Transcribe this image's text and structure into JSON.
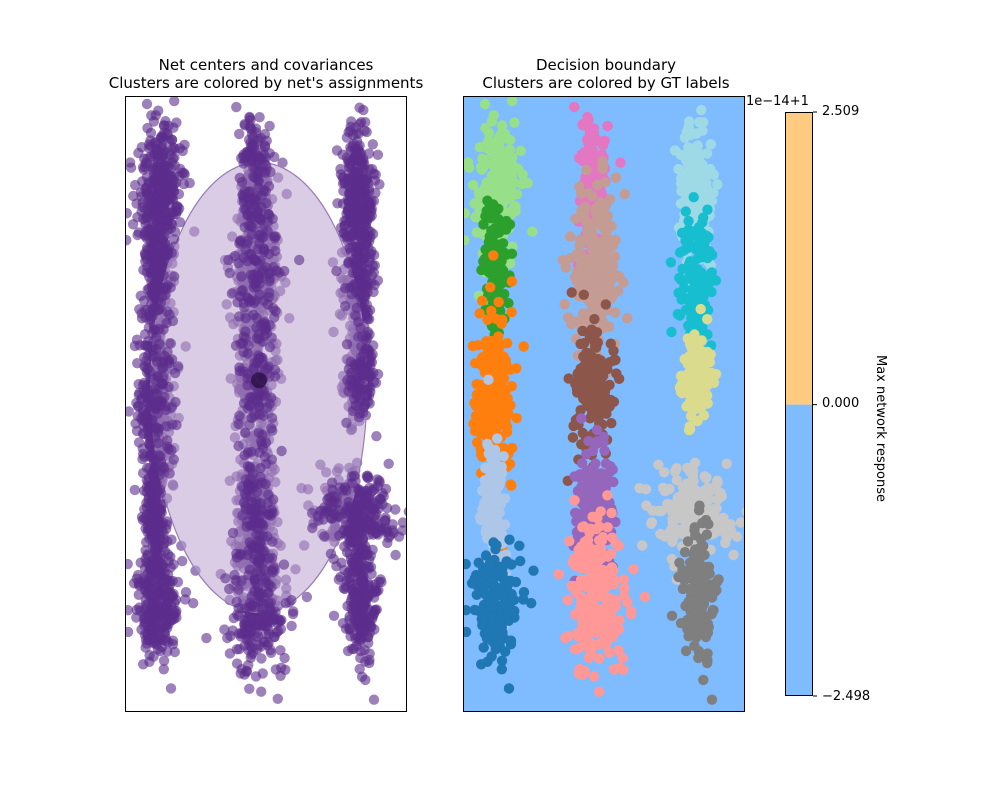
{
  "colors": {
    "assign_purple": "#5c2d8c",
    "ellipse_fill": "#b9a3cd",
    "ellipse_edge": "#9a7bb8",
    "center_dot": "#2b1247",
    "region_blue": "#7fbbff",
    "region_orange": "#ffcb80"
  },
  "chart_data": [
    {
      "type": "scatter",
      "title": "Net centers and covariances\nClusters are colored by net's assignments",
      "title_lines": [
        "Net centers and covariances",
        "Clusters are colored by net's assignments"
      ],
      "xlim": [
        -6,
        6
      ],
      "ylim": [
        -14,
        12
      ],
      "axes_ticks": "none",
      "series": [
        {
          "points_color": "#5c2d8c",
          "alpha": 0.6,
          "clusters": [
            {
              "cx": -4.5,
              "cy": 7.9,
              "sx": 0.45,
              "sy": 1.6,
              "n": 220
            },
            {
              "cx": -4.6,
              "cy": 4.7,
              "sx": 0.25,
              "sy": 1.3,
              "n": 130
            },
            {
              "cx": -4.7,
              "cy": -0.7,
              "sx": 0.4,
              "sy": 2.0,
              "n": 230
            },
            {
              "cx": -4.7,
              "cy": -5.7,
              "sx": 0.25,
              "sy": 1.6,
              "n": 140
            },
            {
              "cx": -4.6,
              "cy": -9.4,
              "sx": 0.45,
              "sy": 1.2,
              "n": 170
            },
            {
              "cx": -0.5,
              "cy": 8.4,
              "sx": 0.3,
              "sy": 1.4,
              "n": 150,
              "tilt": -0.55
            },
            {
              "cx": -0.4,
              "cy": 4.6,
              "sx": 0.55,
              "sy": 1.7,
              "n": 220
            },
            {
              "cx": -0.4,
              "cy": -0.4,
              "sx": 0.4,
              "sy": 1.4,
              "n": 160
            },
            {
              "cx": -0.4,
              "cy": -5.6,
              "sx": 0.4,
              "sy": 1.4,
              "n": 170
            },
            {
              "cx": -0.3,
              "cy": -9.0,
              "sx": 0.6,
              "sy": 1.6,
              "n": 230
            },
            {
              "cx": 3.9,
              "cy": 7.9,
              "sx": 0.35,
              "sy": 1.6,
              "n": 190
            },
            {
              "cx": 3.9,
              "cy": 4.3,
              "sx": 0.35,
              "sy": 1.4,
              "n": 130
            },
            {
              "cx": 4.0,
              "cy": 0.1,
              "sx": 0.3,
              "sy": 1.0,
              "n": 120,
              "tilt": 0.3
            },
            {
              "cx": 3.7,
              "cy": -5.6,
              "sx": 0.9,
              "sy": 0.8,
              "n": 200
            },
            {
              "cx": 4.0,
              "cy": -9.2,
              "sx": 0.35,
              "sy": 1.4,
              "n": 170,
              "tilt": -0.5
            }
          ]
        }
      ],
      "centers": [
        {
          "x": -0.3,
          "y": 0.0
        }
      ],
      "covariance_ellipse": {
        "cx": -0.3,
        "cy": -0.3,
        "rx": 4.6,
        "ry": 9.5
      }
    },
    {
      "type": "scatter",
      "title": "Decision boundary\nClusters are colored by GT labels",
      "title_lines": [
        "Decision boundary",
        "Clusters are colored by GT labels"
      ],
      "xlim": [
        -6,
        6
      ],
      "ylim": [
        -14,
        12
      ],
      "axes_ticks": "none",
      "background_region": "blue",
      "series": [
        {
          "name": "",
          "color": "#98df8a",
          "cx": -4.5,
          "cy": 7.9,
          "sx": 0.45,
          "sy": 1.6,
          "n": 220
        },
        {
          "name": "",
          "color": "#2ca02c",
          "cx": -4.6,
          "cy": 4.7,
          "sx": 0.25,
          "sy": 1.3,
          "n": 130
        },
        {
          "name": "",
          "color": "#ff7f0e",
          "cx": -4.7,
          "cy": -0.7,
          "sx": 0.4,
          "sy": 2.0,
          "n": 230
        },
        {
          "name": "",
          "color": "#aec7e8",
          "cx": -4.7,
          "cy": -5.7,
          "sx": 0.25,
          "sy": 1.6,
          "n": 140
        },
        {
          "name": "",
          "color": "#1f77b4",
          "cx": -4.6,
          "cy": -9.4,
          "sx": 0.45,
          "sy": 1.2,
          "n": 170
        },
        {
          "name": "",
          "color": "#e377c2",
          "cx": -0.5,
          "cy": 8.4,
          "sx": 0.3,
          "sy": 1.4,
          "n": 150,
          "tilt": -0.55
        },
        {
          "name": "",
          "color": "#c49c94",
          "cx": -0.4,
          "cy": 4.6,
          "sx": 0.55,
          "sy": 1.7,
          "n": 220
        },
        {
          "name": "",
          "color": "#8c564b",
          "cx": -0.4,
          "cy": -0.4,
          "sx": 0.4,
          "sy": 1.4,
          "n": 160
        },
        {
          "name": "",
          "color": "#9467bd",
          "cx": -0.4,
          "cy": -5.6,
          "sx": 0.4,
          "sy": 1.4,
          "n": 170
        },
        {
          "name": "",
          "color": "#ff9896",
          "cx": -0.3,
          "cy": -9.0,
          "sx": 0.6,
          "sy": 1.6,
          "n": 230
        },
        {
          "name": "",
          "color": "#9edae5",
          "cx": 3.9,
          "cy": 7.9,
          "sx": 0.35,
          "sy": 1.6,
          "n": 190
        },
        {
          "name": "",
          "color": "#17becf",
          "cx": 3.9,
          "cy": 4.3,
          "sx": 0.35,
          "sy": 1.4,
          "n": 130
        },
        {
          "name": "",
          "color": "#dbdb8d",
          "cx": 4.0,
          "cy": 0.1,
          "sx": 0.3,
          "sy": 1.0,
          "n": 120,
          "tilt": 0.3
        },
        {
          "name": "",
          "color": "#c7c7c7",
          "cx": 3.7,
          "cy": -5.6,
          "sx": 0.9,
          "sy": 0.8,
          "n": 200
        },
        {
          "name": "",
          "color": "#7f7f7f",
          "cx": 4.0,
          "cy": -9.2,
          "sx": 0.35,
          "sy": 1.4,
          "n": 170,
          "tilt": -0.5
        }
      ]
    }
  ],
  "colorbar": {
    "label": "Max network response",
    "offset_text": "1e−14+1",
    "ticks": [
      "2.509",
      "0.000",
      "−2.498"
    ],
    "tick_values": [
      2.509,
      0.0,
      -2.498
    ],
    "range": [
      -2.498,
      2.509
    ],
    "segments": [
      {
        "from": 0.0,
        "to": 2.509,
        "color": "#ffcb80"
      },
      {
        "from": -2.498,
        "to": 0.0,
        "color": "#7fbbff"
      }
    ]
  }
}
